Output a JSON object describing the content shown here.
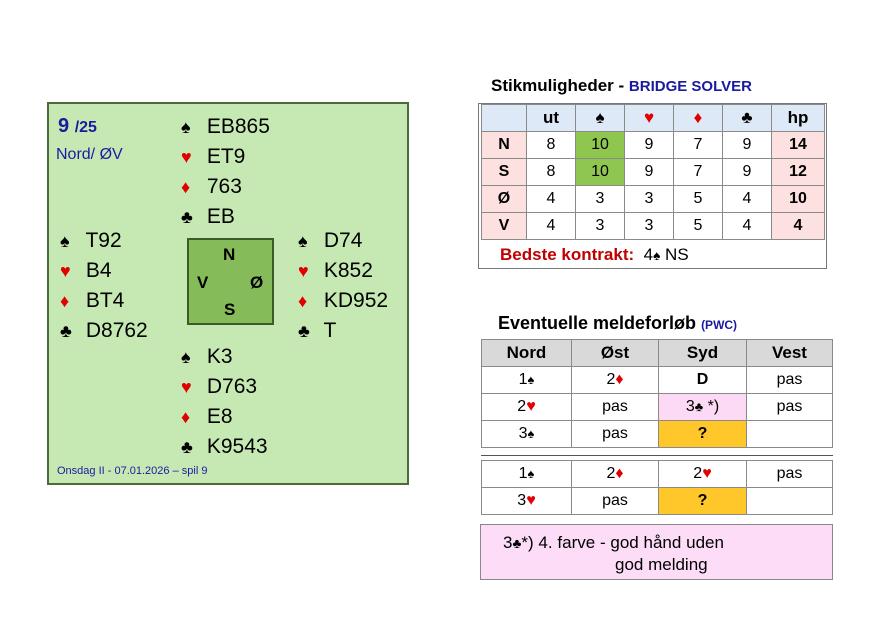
{
  "deal": {
    "board": "9",
    "board_total": "/25",
    "dealer_vuln": "Nord/ ØV",
    "footer": "Onsdag II - 07.01.2026 – spil 9",
    "north": {
      "spades": "EB865",
      "hearts": "ET9",
      "diamonds": "763",
      "clubs": "EB"
    },
    "west": {
      "spades": "T92",
      "hearts": "B4",
      "diamonds": "BT4",
      "clubs": "D8762"
    },
    "east": {
      "spades": "D74",
      "hearts": "K852",
      "diamonds": "KD952",
      "clubs": "T"
    },
    "south": {
      "spades": "K3",
      "hearts": "D763",
      "diamonds": "E8",
      "clubs": "K9543"
    },
    "compass": {
      "n": "N",
      "s": "S",
      "w": "V",
      "e": "Ø"
    }
  },
  "suits": {
    "spade": "♠",
    "heart": "♥",
    "diamond": "♦",
    "club": "♣"
  },
  "solver": {
    "title": "Stikmuligheder",
    "dash": " - ",
    "subtitle": "BRIDGE SOLVER",
    "headers": [
      "",
      "ut",
      "♠",
      "♥",
      "♦",
      "♣",
      "hp"
    ],
    "rows": [
      {
        "seat": "N",
        "values": [
          "8",
          "10",
          "9",
          "7",
          "9"
        ],
        "hp": "14"
      },
      {
        "seat": "S",
        "values": [
          "8",
          "10",
          "9",
          "7",
          "9"
        ],
        "hp": "12"
      },
      {
        "seat": "Ø",
        "values": [
          "4",
          "3",
          "3",
          "5",
          "4"
        ],
        "hp": "10"
      },
      {
        "seat": "V",
        "values": [
          "4",
          "3",
          "3",
          "5",
          "4"
        ],
        "hp": "4"
      }
    ],
    "best_label": "Bedste kontrakt:",
    "best_value": "4♠ NS"
  },
  "bidding": {
    "title": "Eventuelle meldeforløb",
    "subtitle": "(PWC)",
    "headers": [
      "Nord",
      "Øst",
      "Syd",
      "Vest"
    ],
    "seq1": [
      [
        "1♠",
        "2♦",
        "D",
        "pas"
      ],
      [
        "2♥",
        "pas",
        "3♣ *)",
        "pas"
      ],
      [
        "3♠",
        "pas",
        "?",
        ""
      ]
    ],
    "seq2": [
      [
        "1♠",
        "2♦",
        "2♥",
        "pas"
      ],
      [
        "3♥",
        "pas",
        "?",
        ""
      ]
    ],
    "note_line1": "3♣*) 4. farve - god hånd uden",
    "note_line2": "god melding"
  },
  "colors": {
    "deal_bg": "#c6e9b4",
    "compass_bg": "#86bb5a",
    "green_cell": "#8fc64f",
    "gold": "#ffc72a",
    "pink": "#fcd9f4"
  }
}
